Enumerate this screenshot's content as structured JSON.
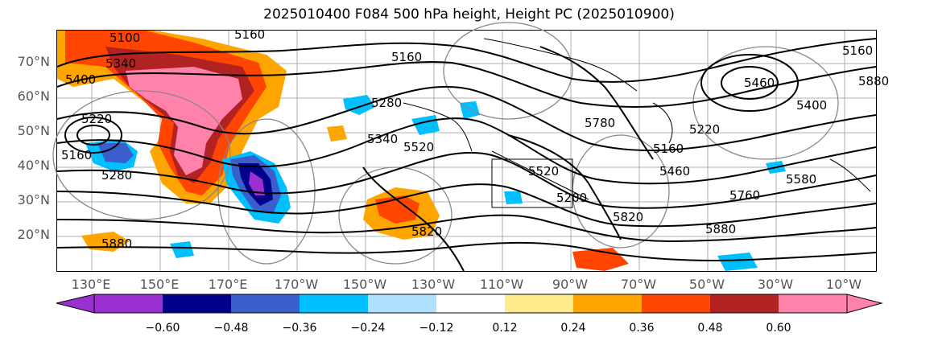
{
  "title": "2025010400 F084 500 hPa height, Height PC (2025010900)",
  "lat_labels": [
    "70°N",
    "60°N",
    "50°N",
    "40°N",
    "30°N",
    "20°N"
  ],
  "lon_labels": [
    "130°E",
    "150°E",
    "170°E",
    "170°W",
    "150°W",
    "130°W",
    "110°W",
    "90°W",
    "70°W",
    "50°W",
    "30°W",
    "10°W"
  ],
  "contour_labels": [
    "5100",
    "5160",
    "5340",
    "5400",
    "5220",
    "5160",
    "5280",
    "5880",
    "5160",
    "5340",
    "5520",
    "5280",
    "5820",
    "5880",
    "5760",
    "5460",
    "5160",
    "5220",
    "5400",
    "5460",
    "5160",
    "5580",
    "5880",
    "5820",
    "5780",
    "5520",
    "5200"
  ],
  "colorbar": {
    "ticks": [
      "−0.60",
      "−0.48",
      "−0.36",
      "−0.24",
      "−0.12",
      "0.12",
      "0.24",
      "0.36",
      "0.48",
      "0.60"
    ],
    "colors": [
      "#9b30d0",
      "#00008b",
      "#3a5fcd",
      "#00bfff",
      "#b0e2ff",
      "#ffffff",
      "#ffec8b",
      "#ffa500",
      "#ff4500",
      "#b22222",
      "#ff82ab"
    ]
  }
}
